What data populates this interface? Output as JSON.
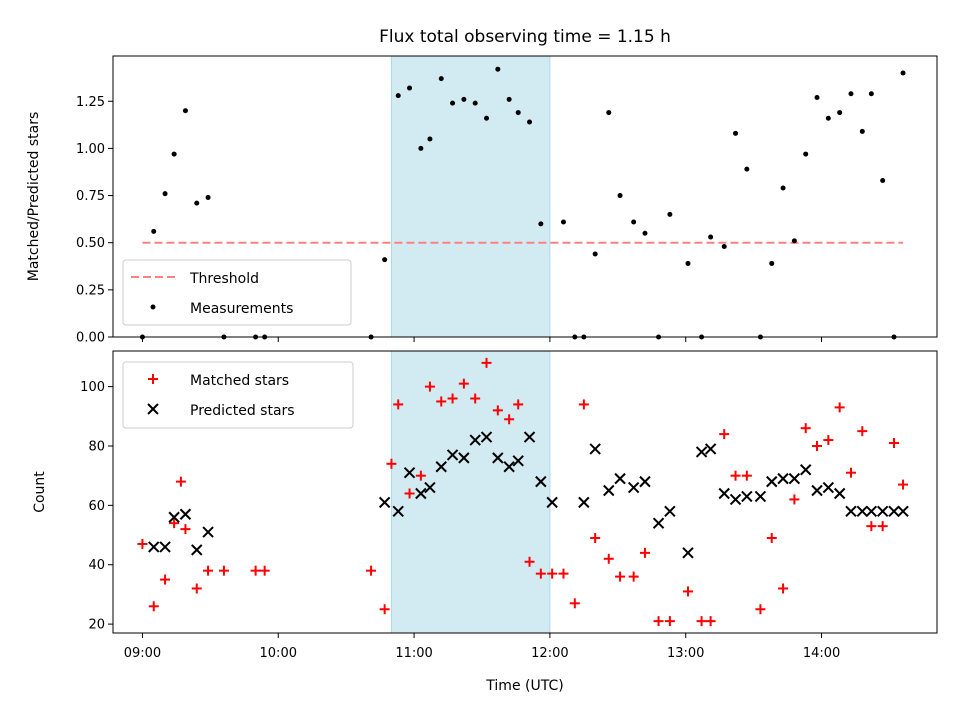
{
  "colors": {
    "threshold": "#ff8080",
    "measurement": "#000000",
    "matched": "#ff0000",
    "predicted": "#000000",
    "span": "#add8e6"
  },
  "chart_data": [
    {
      "type": "scatter",
      "title": "Flux total observing time = 1.15 h",
      "ylabel": "Matched/Predicted stars",
      "ylim": [
        0,
        1.49
      ],
      "yticks": [
        "0.00",
        "0.25",
        "0.50",
        "0.75",
        "1.00",
        "1.25"
      ],
      "ytick_values": [
        0,
        0.25,
        0.5,
        0.75,
        1.0,
        1.25
      ],
      "highlight_span": [
        "10:50",
        "12:00"
      ],
      "legend": {
        "position": "lower-left",
        "entries": [
          "Threshold",
          "Measurements"
        ]
      },
      "series": [
        {
          "name": "Threshold",
          "kind": "dashed-line",
          "x": [
            "09:00",
            "14:36"
          ],
          "y": [
            0.5,
            0.5
          ]
        },
        {
          "name": "Measurements",
          "kind": "dots",
          "x": [
            "09:00",
            "09:05",
            "09:10",
            "09:14",
            "09:19",
            "09:24",
            "09:29",
            "09:36",
            "09:50",
            "09:54",
            "10:41",
            "10:47",
            "10:53",
            "10:58",
            "11:03",
            "11:07",
            "11:12",
            "11:17",
            "11:22",
            "11:27",
            "11:32",
            "11:37",
            "11:42",
            "11:46",
            "11:51",
            "11:56",
            "12:06",
            "12:11",
            "12:15",
            "12:20",
            "12:26",
            "12:31",
            "12:37",
            "12:42",
            "12:48",
            "12:53",
            "13:01",
            "13:07",
            "13:11",
            "13:17",
            "13:22",
            "13:27",
            "13:33",
            "13:38",
            "13:43",
            "13:48",
            "13:53",
            "13:58",
            "14:03",
            "14:08",
            "14:13",
            "14:18",
            "14:22",
            "14:27",
            "14:32",
            "14:36"
          ],
          "y": [
            0.0,
            0.56,
            0.76,
            0.97,
            1.2,
            0.71,
            0.74,
            0.0,
            0.0,
            0.0,
            0.0,
            0.41,
            1.28,
            1.32,
            1.0,
            1.05,
            1.37,
            1.24,
            1.26,
            1.24,
            1.16,
            1.42,
            1.26,
            1.19,
            1.14,
            0.6,
            0.61,
            0.0,
            0.0,
            0.44,
            1.19,
            0.75,
            0.61,
            0.55,
            0.0,
            0.65,
            0.39,
            0.0,
            0.53,
            0.48,
            1.08,
            0.89,
            0.0,
            0.39,
            0.79,
            0.51,
            0.97,
            1.27,
            1.16,
            1.19,
            1.29,
            1.09,
            1.29,
            0.83,
            0.0,
            1.4
          ]
        }
      ]
    },
    {
      "type": "scatter",
      "xlabel": "Time (UTC)",
      "ylabel": "Count",
      "ylim": [
        17,
        112
      ],
      "xlim": [
        "08:47",
        "14:51"
      ],
      "xticks": [
        "09:00",
        "10:00",
        "11:00",
        "12:00",
        "13:00",
        "14:00"
      ],
      "yticks": [
        "20",
        "40",
        "60",
        "80",
        "100"
      ],
      "ytick_values": [
        20,
        40,
        60,
        80,
        100
      ],
      "highlight_span": [
        "10:50",
        "12:00"
      ],
      "legend": {
        "position": "upper-left",
        "entries": [
          "Matched stars",
          "Predicted stars"
        ]
      },
      "series": [
        {
          "name": "Matched stars",
          "kind": "plus",
          "x": [
            "09:00",
            "09:05",
            "09:10",
            "09:14",
            "09:17",
            "09:19",
            "09:24",
            "09:29",
            "09:36",
            "09:50",
            "09:54",
            "10:41",
            "10:47",
            "10:50",
            "10:53",
            "10:58",
            "11:03",
            "11:07",
            "11:12",
            "11:17",
            "11:22",
            "11:27",
            "11:32",
            "11:37",
            "11:42",
            "11:46",
            "11:51",
            "11:56",
            "12:01",
            "12:06",
            "12:11",
            "12:15",
            "12:20",
            "12:26",
            "12:31",
            "12:37",
            "12:42",
            "12:48",
            "12:53",
            "13:01",
            "13:07",
            "13:11",
            "13:17",
            "13:22",
            "13:27",
            "13:33",
            "13:38",
            "13:43",
            "13:48",
            "13:53",
            "13:58",
            "14:03",
            "14:08",
            "14:13",
            "14:18",
            "14:22",
            "14:27",
            "14:32",
            "14:36"
          ],
          "y": [
            47,
            26,
            35,
            54,
            68,
            52,
            32,
            38,
            38,
            38,
            38,
            38,
            25,
            74,
            94,
            64,
            70,
            100,
            95,
            96,
            101,
            96,
            108,
            92,
            89,
            94,
            41,
            37,
            37,
            37,
            27,
            94,
            49,
            42,
            36,
            36,
            44,
            21,
            21,
            31,
            21,
            21,
            84,
            70,
            70,
            25,
            49,
            32,
            62,
            86,
            80,
            82,
            93,
            71,
            85,
            53,
            53,
            81,
            67
          ]
        },
        {
          "name": "Predicted stars",
          "kind": "cross",
          "x": [
            "09:05",
            "09:10",
            "09:14",
            "09:19",
            "09:24",
            "09:29",
            "10:47",
            "10:53",
            "10:58",
            "11:03",
            "11:07",
            "11:12",
            "11:17",
            "11:22",
            "11:27",
            "11:32",
            "11:37",
            "11:42",
            "11:46",
            "11:51",
            "11:56",
            "12:01",
            "12:15",
            "12:20",
            "12:26",
            "12:31",
            "12:37",
            "12:42",
            "12:48",
            "12:53",
            "13:01",
            "13:07",
            "13:11",
            "13:17",
            "13:22",
            "13:27",
            "13:33",
            "13:38",
            "13:43",
            "13:48",
            "13:53",
            "13:58",
            "14:03",
            "14:08",
            "14:13",
            "14:18",
            "14:22",
            "14:27",
            "14:32",
            "14:36"
          ],
          "y": [
            46,
            46,
            56,
            57,
            45,
            51,
            61,
            58,
            71,
            64,
            66,
            73,
            77,
            76,
            82,
            83,
            76,
            73,
            75,
            83,
            68,
            61,
            61,
            79,
            65,
            69,
            66,
            68,
            54,
            58,
            44,
            78,
            79,
            64,
            62,
            63,
            63,
            68,
            69,
            69,
            72,
            65,
            66,
            64,
            58,
            58,
            58,
            58,
            58,
            58
          ]
        }
      ]
    }
  ]
}
